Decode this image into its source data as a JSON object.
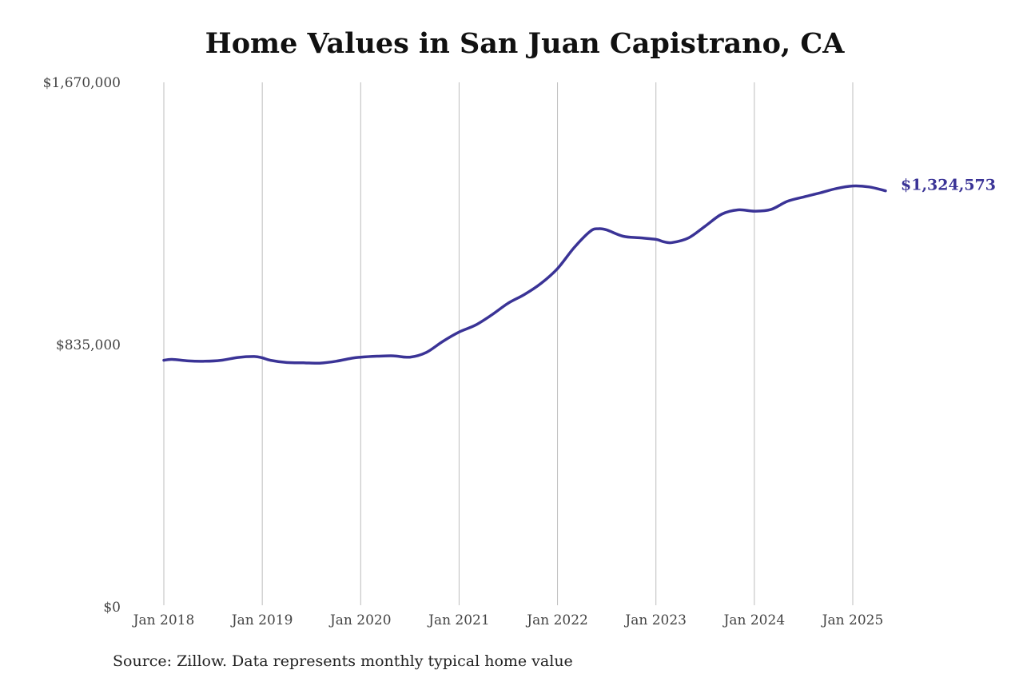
{
  "title": "Home Values in San Juan Capistrano, CA",
  "source": "Source: Zillow. Data represents monthly typical home value",
  "chart_data": {
    "type": "line",
    "title": "Home Values in San Juan Capistrano, CA",
    "xlabel": "",
    "ylabel": "",
    "ylim": [
      0,
      1670000
    ],
    "y_ticks": [
      0,
      835000,
      1670000
    ],
    "y_tick_labels": [
      "$0",
      "$835,000",
      "$1,670,000"
    ],
    "x_ticks": [
      "2018-01",
      "2019-01",
      "2020-01",
      "2021-01",
      "2022-01",
      "2023-01",
      "2024-01",
      "2025-01"
    ],
    "x_tick_labels": [
      "Jan 2018",
      "Jan 2019",
      "Jan 2020",
      "Jan 2021",
      "Jan 2022",
      "Jan 2023",
      "Jan 2024",
      "Jan 2025"
    ],
    "grid": "vertical",
    "line_color": "#3a3396",
    "series": [
      {
        "x": [
          "2018-01",
          "2018-02",
          "2018-04",
          "2018-06",
          "2018-08",
          "2018-10",
          "2018-12",
          "2019-01",
          "2019-02",
          "2019-04",
          "2019-06",
          "2019-08",
          "2019-10",
          "2019-12",
          "2020-01",
          "2020-03",
          "2020-05",
          "2020-07",
          "2020-09",
          "2020-11",
          "2021-01",
          "2021-03",
          "2021-05",
          "2021-07",
          "2021-09",
          "2021-11",
          "2022-01",
          "2022-03",
          "2022-05",
          "2022-06",
          "2022-07",
          "2022-09",
          "2022-11",
          "2023-01",
          "2023-02",
          "2023-03",
          "2023-05",
          "2023-07",
          "2023-09",
          "2023-11",
          "2024-01",
          "2024-03",
          "2024-05",
          "2024-07",
          "2024-09",
          "2024-11",
          "2025-01",
          "2025-03",
          "2025-05"
        ],
        "values": [
          785000,
          788000,
          783000,
          782000,
          785000,
          794000,
          797000,
          793000,
          785000,
          778000,
          777000,
          776000,
          782000,
          792000,
          795000,
          798000,
          799000,
          795000,
          810000,
          845000,
          875000,
          897000,
          930000,
          967000,
          995000,
          1030000,
          1077000,
          1143000,
          1196000,
          1204000,
          1200000,
          1180000,
          1175000,
          1170000,
          1162000,
          1160000,
          1175000,
          1212000,
          1250000,
          1264000,
          1260000,
          1265000,
          1291000,
          1305000,
          1318000,
          1332000,
          1340000,
          1337000,
          1324573
        ]
      }
    ],
    "end_label": "$1,324,573"
  }
}
